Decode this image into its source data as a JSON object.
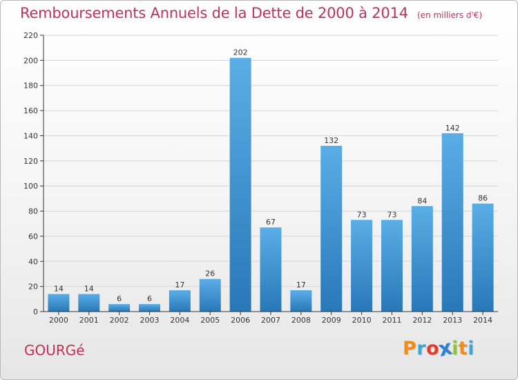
{
  "header": {
    "title": "Remboursements Annuels de la Dette de 2000 à 2014",
    "unit": "(en milliers d'€)"
  },
  "footer": {
    "town": "GOURGé",
    "logo": "Proxiti"
  },
  "logo_letters": [
    {
      "char": "P",
      "color": "#f08c1c"
    },
    {
      "char": "r",
      "color": "#39a8d9"
    },
    {
      "char": "o",
      "color": "#e63a2a"
    },
    {
      "char": "x",
      "color": "#2f7fd4"
    },
    {
      "char": "i",
      "color": "#8dc43d"
    },
    {
      "char": "t",
      "color": "#f08c1c"
    },
    {
      "char": "i",
      "color": "#39a8d9"
    }
  ],
  "colors": {
    "bar_top": "#5aaee6",
    "bar_bottom": "#2878b8",
    "title": "#c0305a",
    "axis": "#333333",
    "grid": "#d4d4d4"
  },
  "chart_data": {
    "type": "bar",
    "categories": [
      "2000",
      "2001",
      "2002",
      "2003",
      "2004",
      "2005",
      "2006",
      "2007",
      "2008",
      "2009",
      "2010",
      "2011",
      "2012",
      "2013",
      "2014"
    ],
    "values": [
      14,
      14,
      6,
      6,
      17,
      26,
      202,
      67,
      17,
      132,
      73,
      73,
      84,
      142,
      86
    ],
    "ylim": [
      0,
      220
    ],
    "yticks": [
      0,
      20,
      40,
      60,
      80,
      100,
      120,
      140,
      160,
      180,
      200,
      220
    ],
    "grid": true
  }
}
